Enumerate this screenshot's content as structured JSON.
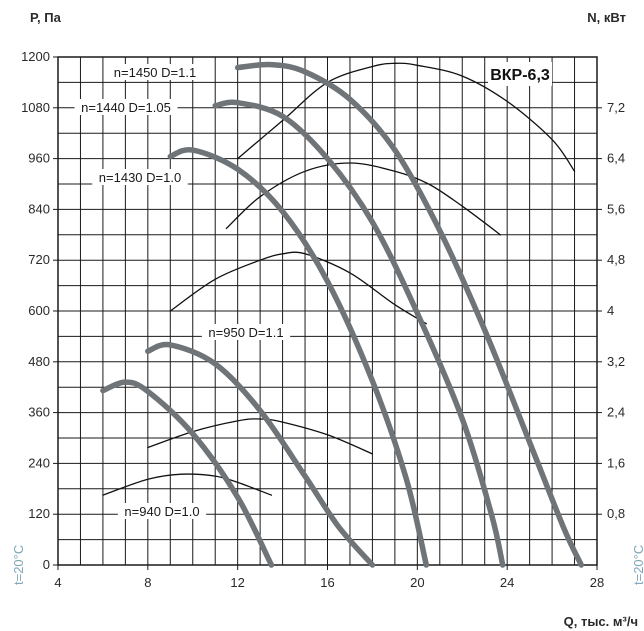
{
  "chart_data": {
    "type": "line",
    "title": "ВКР-6,3",
    "ylabel_left": "P, Па",
    "ylabel_right": "N, кВт",
    "xlabel": "Q, тыс. м³/ч",
    "temperature_label": "t=20°C",
    "x_ticks": [
      "4",
      "8",
      "12",
      "16",
      "20",
      "24",
      "28"
    ],
    "y_left_ticks": [
      "0",
      "120",
      "240",
      "360",
      "480",
      "600",
      "720",
      "840",
      "960",
      "1080",
      "1200"
    ],
    "y_right_ticks": [
      "0,8",
      "1,6",
      "2,4",
      "3,2",
      "4",
      "4,8",
      "5,6",
      "6,4",
      "7,2"
    ],
    "xlim": [
      4,
      28
    ],
    "ylim_left": [
      0,
      1200
    ],
    "ylim_right": [
      0,
      8
    ],
    "grid": true,
    "series": [
      {
        "name": "n=1450 D=1.1",
        "kind": "pressure",
        "x": [
          12,
          13.5,
          15,
          17,
          19,
          21,
          23,
          25,
          26.5,
          27.3
        ],
        "y": [
          1175,
          1182,
          1165,
          1100,
          980,
          790,
          555,
          290,
          90,
          0
        ]
      },
      {
        "name": "n=1440 D=1.05",
        "kind": "pressure",
        "x": [
          11,
          12,
          14,
          16,
          18,
          20,
          22,
          23.3,
          23.8
        ],
        "y": [
          1085,
          1092,
          1060,
          960,
          810,
          595,
          345,
          120,
          0
        ]
      },
      {
        "name": "n=1430 D=1.0",
        "kind": "pressure",
        "x": [
          9,
          10,
          12,
          14,
          16,
          18,
          19.5,
          20.4
        ],
        "y": [
          965,
          980,
          935,
          835,
          670,
          435,
          205,
          0
        ]
      },
      {
        "name": "n=950 D=1.1",
        "kind": "pressure",
        "x": [
          8,
          9,
          11,
          13,
          15,
          16.5,
          18
        ],
        "y": [
          505,
          520,
          475,
          365,
          210,
          90,
          0
        ]
      },
      {
        "name": "n=940 D=1.0",
        "kind": "pressure",
        "x": [
          6,
          7,
          8,
          10,
          12,
          13.5
        ],
        "y": [
          412,
          432,
          410,
          310,
          160,
          0
        ]
      },
      {
        "name": "N n=1450 D=1.1",
        "kind": "power",
        "x": [
          12,
          14,
          16,
          18,
          19,
          20,
          22,
          24,
          26,
          27
        ],
        "y": [
          6.4,
          7.0,
          7.6,
          7.85,
          7.9,
          7.87,
          7.7,
          7.3,
          6.7,
          6.2
        ]
      },
      {
        "name": "N n=1440 D=1.05",
        "kind": "power",
        "x": [
          11.5,
          13,
          15,
          17,
          19,
          20.5,
          22,
          23.7
        ],
        "y": [
          5.3,
          5.8,
          6.2,
          6.33,
          6.2,
          6.0,
          5.65,
          5.2
        ]
      },
      {
        "name": "N n=1430 D=1.0",
        "kind": "power",
        "x": [
          9,
          11,
          13,
          14,
          15,
          17,
          19,
          20.4
        ],
        "y": [
          4.0,
          4.5,
          4.8,
          4.9,
          4.9,
          4.6,
          4.1,
          3.8
        ]
      },
      {
        "name": "N n=950 D=1.1",
        "kind": "power",
        "x": [
          8,
          10,
          12,
          13,
          14,
          16,
          18
        ],
        "y": [
          1.85,
          2.1,
          2.27,
          2.3,
          2.25,
          2.05,
          1.75
        ]
      },
      {
        "name": "N n=940 D=1.0",
        "kind": "power",
        "x": [
          6,
          8,
          9.5,
          11,
          12,
          13.5
        ],
        "y": [
          1.1,
          1.35,
          1.43,
          1.4,
          1.3,
          1.1
        ]
      }
    ],
    "curve_labels": [
      "n=1450 D=1.1",
      "n=1440 D=1.05",
      "n=1430 D=1.0",
      "n=950 D=1.1",
      "n=940 D=1.0"
    ]
  }
}
